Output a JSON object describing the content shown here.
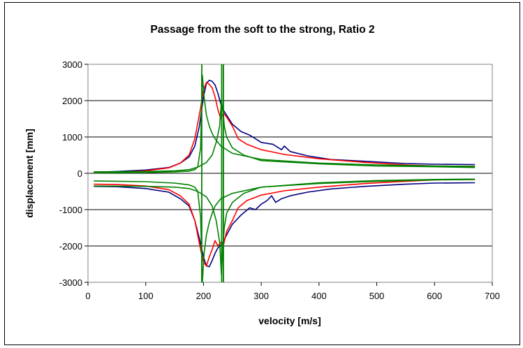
{
  "chart_data": {
    "type": "line",
    "title": "Passage from the soft to the strong, Ratio 2",
    "xlabel": "velocity [m/s]",
    "ylabel": "displacement [mm]",
    "xlim": [
      0,
      700
    ],
    "ylim": [
      -3000,
      3000
    ],
    "x_ticks": [
      0,
      100,
      200,
      300,
      400,
      500,
      600,
      700
    ],
    "y_ticks": [
      -3000,
      -2000,
      -1000,
      0,
      1000,
      2000,
      3000
    ],
    "grid": "horizontal",
    "legend": "none",
    "series": [
      {
        "color": "#000080",
        "x": [
          10,
          50,
          100,
          140,
          160,
          175,
          185,
          193,
          200,
          205,
          210,
          215,
          220,
          225,
          232,
          240,
          250,
          265,
          280,
          290,
          300,
          320,
          335,
          340,
          350,
          380,
          420,
          480,
          550,
          600,
          670
        ],
        "y": [
          30,
          50,
          90,
          160,
          280,
          450,
          750,
          1300,
          2100,
          2480,
          2560,
          2530,
          2430,
          2200,
          1800,
          1600,
          1350,
          1150,
          1050,
          950,
          850,
          800,
          650,
          750,
          600,
          480,
          380,
          330,
          270,
          250,
          240
        ]
      },
      {
        "color": "#000080",
        "x": [
          10,
          50,
          100,
          140,
          160,
          175,
          185,
          193,
          200,
          205,
          210,
          215,
          220,
          225,
          232,
          240,
          250,
          265,
          280,
          290,
          300,
          310,
          318,
          325,
          335,
          350,
          380,
          420,
          480,
          550,
          600,
          670
        ],
        "y": [
          -360,
          -370,
          -420,
          -520,
          -700,
          -900,
          -1300,
          -1800,
          -2300,
          -2550,
          -2570,
          -2400,
          -2200,
          -2050,
          -1950,
          -1700,
          -1400,
          -1150,
          -950,
          -1000,
          -850,
          -750,
          -620,
          -800,
          -700,
          -620,
          -520,
          -430,
          -360,
          -300,
          -270,
          -260
        ]
      },
      {
        "color": "#ff0000",
        "x": [
          10,
          50,
          100,
          140,
          160,
          175,
          185,
          195,
          200,
          205,
          210,
          215,
          220,
          225,
          230,
          235,
          240,
          250,
          260,
          275,
          300,
          340,
          400,
          480,
          550,
          600,
          670
        ],
        "y": [
          20,
          30,
          70,
          150,
          280,
          500,
          950,
          1800,
          2300,
          2500,
          2450,
          2350,
          2100,
          1750,
          1500,
          1650,
          1550,
          1300,
          950,
          800,
          650,
          520,
          400,
          300,
          230,
          200,
          190
        ]
      },
      {
        "color": "#ff0000",
        "x": [
          10,
          50,
          100,
          140,
          160,
          175,
          185,
          195,
          200,
          205,
          210,
          215,
          220,
          225,
          230,
          235,
          240,
          250,
          260,
          275,
          300,
          340,
          400,
          480,
          550,
          600,
          670
        ],
        "y": [
          -300,
          -310,
          -350,
          -450,
          -620,
          -850,
          -1300,
          -2100,
          -2450,
          -2550,
          -2300,
          -2100,
          -1850,
          -2000,
          -1900,
          -1950,
          -1600,
          -1300,
          -950,
          -750,
          -600,
          -480,
          -380,
          -280,
          -220,
          -180,
          -170
        ]
      },
      {
        "color": "#008000",
        "x": [
          10,
          100,
          150,
          175,
          185,
          190,
          195,
          198,
          201,
          205,
          210,
          215,
          220,
          230,
          250,
          300,
          400,
          500,
          600,
          670
        ],
        "y": [
          10,
          20,
          40,
          60,
          100,
          180,
          700,
          2700,
          2100,
          1600,
          1300,
          1100,
          950,
          750,
          550,
          380,
          280,
          230,
          200,
          190
        ]
      },
      {
        "color": "#008000",
        "x": [
          10,
          100,
          150,
          175,
          185,
          190,
          195,
          198,
          201,
          205,
          210,
          215,
          220,
          230,
          250,
          300,
          400,
          500,
          600,
          670
        ],
        "y": [
          -210,
          -230,
          -270,
          -320,
          -380,
          -500,
          -1200,
          -3000,
          -2200,
          -1700,
          -1350,
          -1100,
          -900,
          -700,
          -550,
          -380,
          -280,
          -220,
          -180,
          -170
        ]
      },
      {
        "color": "#008000",
        "x": [
          10,
          100,
          150,
          175,
          190,
          205,
          215,
          222,
          228,
          231,
          234,
          236,
          240,
          250,
          270,
          300,
          400,
          500,
          600,
          670
        ],
        "y": [
          40,
          50,
          70,
          100,
          170,
          300,
          500,
          850,
          1300,
          2000,
          1700,
          1300,
          1000,
          700,
          500,
          350,
          260,
          200,
          180,
          160
        ]
      },
      {
        "color": "#008000",
        "x": [
          10,
          100,
          150,
          175,
          190,
          205,
          215,
          222,
          228,
          231,
          234,
          236,
          240,
          250,
          270,
          300,
          400,
          500,
          600,
          670
        ],
        "y": [
          -350,
          -360,
          -380,
          -420,
          -500,
          -650,
          -900,
          -1300,
          -1900,
          -2800,
          -1900,
          -1500,
          -1100,
          -800,
          -550,
          -380,
          -260,
          -200,
          -170,
          -160
        ]
      }
    ],
    "vertical_lines": [
      {
        "color": "#008000",
        "x": 197,
        "y": [
          -3000,
          3000
        ]
      },
      {
        "color": "#008000",
        "x": 231.5,
        "y": [
          -3000,
          3000
        ]
      },
      {
        "color": "#008000",
        "x": 234.5,
        "y": [
          -3000,
          3000
        ]
      }
    ]
  }
}
